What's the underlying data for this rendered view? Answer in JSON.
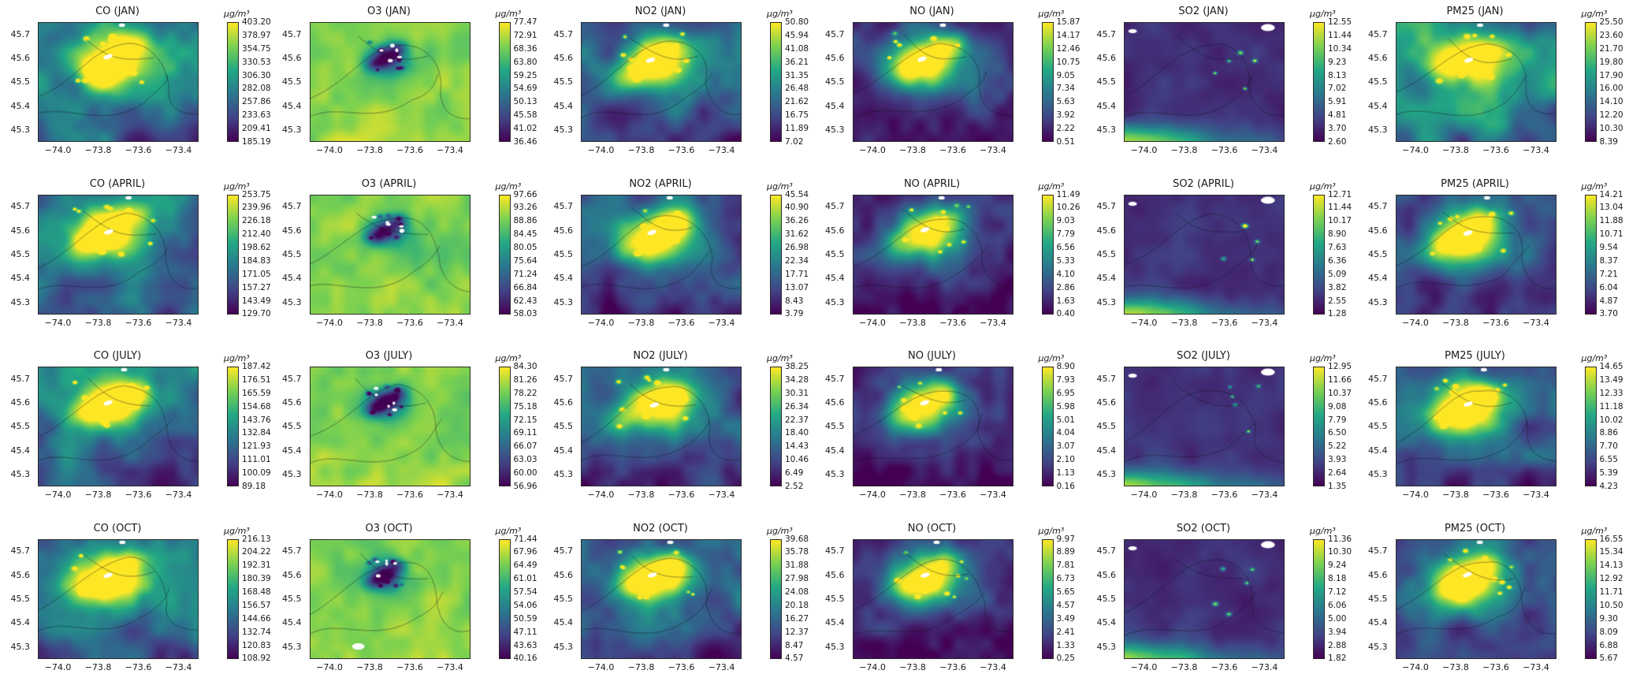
{
  "figure_title": "",
  "chart_data": {
    "type": "heatmap",
    "colormap": "viridis",
    "layout": {
      "rows": 4,
      "cols": 6,
      "grid": true,
      "colorbar_position": "right"
    },
    "row_months": [
      "JAN",
      "APRIL",
      "JULY",
      "OCT"
    ],
    "col_pollutants": [
      "CO",
      "O3",
      "NO2",
      "NO",
      "SO2",
      "PM25"
    ],
    "units": "µg/m³",
    "x_label": "",
    "y_label": "",
    "x_ticks": [
      "−74.0",
      "−73.8",
      "−73.6",
      "−73.4"
    ],
    "y_ticks": [
      "45.7",
      "45.6",
      "45.5",
      "45.4",
      "45.3"
    ],
    "x_range": [
      -74.1,
      -73.33
    ],
    "y_range": [
      45.22,
      45.76
    ],
    "panels": [
      {
        "title": "CO (JAN)",
        "pollutant": "CO",
        "month": "JAN",
        "pattern": "hotspot",
        "base": 0.42,
        "amp": 0.8,
        "colorbar_ticks": [
          "403.20",
          "378.97",
          "354.75",
          "330.53",
          "306.30",
          "282.08",
          "257.86",
          "233.63",
          "209.41",
          "185.19"
        ]
      },
      {
        "title": "O3 (JAN)",
        "pollutant": "O3",
        "month": "JAN",
        "pattern": "inverse",
        "base": 0.8,
        "amp": 1.0,
        "colorbar_ticks": [
          "77.47",
          "72.91",
          "68.36",
          "63.80",
          "59.25",
          "54.69",
          "50.13",
          "45.58",
          "41.02",
          "36.46"
        ]
      },
      {
        "title": "NO2 (JAN)",
        "pollutant": "NO2",
        "month": "JAN",
        "pattern": "hotspot",
        "base": 0.3,
        "amp": 0.78,
        "colorbar_ticks": [
          "50.80",
          "45.94",
          "41.08",
          "36.21",
          "31.35",
          "26.48",
          "21.62",
          "16.75",
          "11.89",
          "7.02"
        ]
      },
      {
        "title": "NO (JAN)",
        "pollutant": "NO",
        "month": "JAN",
        "pattern": "hotspot",
        "base": 0.18,
        "amp": 0.85,
        "colorbar_ticks": [
          "15.87",
          "14.17",
          "12.46",
          "10.75",
          "9.05",
          "7.34",
          "5.63",
          "3.92",
          "2.22",
          "0.51"
        ]
      },
      {
        "title": "SO2 (JAN)",
        "pollutant": "SO2",
        "month": "JAN",
        "pattern": "sparse",
        "base": 0.06,
        "amp": 1.0,
        "colorbar_ticks": [
          "12.55",
          "11.44",
          "10.34",
          "9.23",
          "8.13",
          "7.02",
          "5.91",
          "4.81",
          "3.70",
          "2.60"
        ]
      },
      {
        "title": "PM25 (JAN)",
        "pollutant": "PM25",
        "month": "JAN",
        "pattern": "hotspot",
        "base": 0.5,
        "amp": 0.6,
        "colorbar_ticks": [
          "25.50",
          "23.60",
          "21.70",
          "19.80",
          "17.90",
          "16.00",
          "14.10",
          "12.20",
          "10.30",
          "8.39"
        ]
      },
      {
        "title": "CO (APRIL)",
        "pollutant": "CO",
        "month": "APRIL",
        "pattern": "hotspot",
        "base": 0.4,
        "amp": 0.8,
        "colorbar_ticks": [
          "253.75",
          "239.96",
          "226.18",
          "212.40",
          "198.62",
          "184.83",
          "171.05",
          "157.27",
          "143.49",
          "129.70"
        ]
      },
      {
        "title": "O3 (APRIL)",
        "pollutant": "O3",
        "month": "APRIL",
        "pattern": "inverse",
        "base": 0.8,
        "amp": 1.0,
        "colorbar_ticks": [
          "97.66",
          "93.26",
          "88.86",
          "84.45",
          "80.05",
          "75.64",
          "71.24",
          "66.84",
          "62.43",
          "58.03"
        ]
      },
      {
        "title": "NO2 (APRIL)",
        "pollutant": "NO2",
        "month": "APRIL",
        "pattern": "hotspot",
        "base": 0.28,
        "amp": 0.78,
        "colorbar_ticks": [
          "45.54",
          "40.90",
          "36.26",
          "31.62",
          "26.98",
          "22.34",
          "17.71",
          "13.07",
          "8.43",
          "3.79"
        ]
      },
      {
        "title": "NO (APRIL)",
        "pollutant": "NO",
        "month": "APRIL",
        "pattern": "hotspot",
        "base": 0.15,
        "amp": 0.75,
        "colorbar_ticks": [
          "11.49",
          "10.26",
          "9.03",
          "7.79",
          "6.56",
          "5.33",
          "4.10",
          "2.86",
          "1.63",
          "0.40"
        ]
      },
      {
        "title": "SO2 (APRIL)",
        "pollutant": "SO2",
        "month": "APRIL",
        "pattern": "sparse",
        "base": 0.06,
        "amp": 0.9,
        "colorbar_ticks": [
          "12.71",
          "11.44",
          "10.17",
          "8.90",
          "7.63",
          "6.36",
          "5.09",
          "3.82",
          "2.55",
          "1.28"
        ]
      },
      {
        "title": "PM25 (APRIL)",
        "pollutant": "PM25",
        "month": "APRIL",
        "pattern": "hotspot",
        "base": 0.26,
        "amp": 0.8,
        "colorbar_ticks": [
          "14.21",
          "13.04",
          "11.88",
          "10.71",
          "9.54",
          "8.37",
          "7.21",
          "6.04",
          "4.87",
          "3.70"
        ]
      },
      {
        "title": "CO (JULY)",
        "pollutant": "CO",
        "month": "JULY",
        "pattern": "hotspot",
        "base": 0.38,
        "amp": 0.78,
        "colorbar_ticks": [
          "187.42",
          "176.51",
          "165.59",
          "154.68",
          "143.76",
          "132.84",
          "121.93",
          "111.01",
          "100.09",
          "89.18"
        ]
      },
      {
        "title": "O3 (JULY)",
        "pollutant": "O3",
        "month": "JULY",
        "pattern": "inverse",
        "base": 0.8,
        "amp": 1.0,
        "colorbar_ticks": [
          "84.30",
          "81.26",
          "78.22",
          "75.18",
          "72.15",
          "69.11",
          "66.07",
          "63.03",
          "60.00",
          "56.96"
        ]
      },
      {
        "title": "NO2 (JULY)",
        "pollutant": "NO2",
        "month": "JULY",
        "pattern": "hotspot",
        "base": 0.27,
        "amp": 0.75,
        "colorbar_ticks": [
          "38.25",
          "34.28",
          "30.31",
          "26.34",
          "22.37",
          "18.40",
          "14.43",
          "10.46",
          "6.49",
          "2.52"
        ]
      },
      {
        "title": "NO (JULY)",
        "pollutant": "NO",
        "month": "JULY",
        "pattern": "hotspot",
        "base": 0.14,
        "amp": 0.72,
        "colorbar_ticks": [
          "8.90",
          "7.93",
          "6.95",
          "5.98",
          "5.01",
          "4.04",
          "3.07",
          "2.10",
          "1.13",
          "0.16"
        ]
      },
      {
        "title": "SO2 (JULY)",
        "pollutant": "SO2",
        "month": "JULY",
        "pattern": "sparse",
        "base": 0.06,
        "amp": 0.85,
        "colorbar_ticks": [
          "12.95",
          "11.66",
          "10.37",
          "9.08",
          "7.79",
          "6.50",
          "5.22",
          "3.93",
          "2.64",
          "1.35"
        ]
      },
      {
        "title": "PM25 (JULY)",
        "pollutant": "PM25",
        "month": "JULY",
        "pattern": "hotspot",
        "base": 0.27,
        "amp": 0.82,
        "colorbar_ticks": [
          "14.65",
          "13.49",
          "12.33",
          "11.18",
          "10.02",
          "8.86",
          "7.70",
          "6.55",
          "5.39",
          "4.23"
        ]
      },
      {
        "title": "CO (OCT)",
        "pollutant": "CO",
        "month": "OCT",
        "pattern": "hotspot",
        "base": 0.38,
        "amp": 0.78,
        "colorbar_ticks": [
          "216.13",
          "204.22",
          "192.31",
          "180.39",
          "168.48",
          "156.57",
          "144.66",
          "132.74",
          "120.83",
          "108.92"
        ]
      },
      {
        "title": "O3 (OCT)",
        "pollutant": "O3",
        "month": "OCT",
        "pattern": "inverse",
        "base": 0.8,
        "amp": 1.0,
        "colorbar_ticks": [
          "71.44",
          "67.96",
          "64.49",
          "61.01",
          "57.54",
          "54.06",
          "50.59",
          "47.11",
          "43.63",
          "40.16"
        ]
      },
      {
        "title": "NO2 (OCT)",
        "pollutant": "NO2",
        "month": "OCT",
        "pattern": "hotspot",
        "base": 0.28,
        "amp": 0.76,
        "colorbar_ticks": [
          "39.68",
          "35.78",
          "31.88",
          "27.98",
          "24.08",
          "20.18",
          "16.27",
          "12.37",
          "8.47",
          "4.57"
        ]
      },
      {
        "title": "NO (OCT)",
        "pollutant": "NO",
        "month": "OCT",
        "pattern": "hotspot",
        "base": 0.15,
        "amp": 0.78,
        "colorbar_ticks": [
          "9.97",
          "8.89",
          "7.81",
          "6.73",
          "5.65",
          "4.57",
          "3.49",
          "2.41",
          "1.33",
          "0.25"
        ]
      },
      {
        "title": "SO2 (OCT)",
        "pollutant": "SO2",
        "month": "OCT",
        "pattern": "sparse",
        "base": 0.06,
        "amp": 0.85,
        "colorbar_ticks": [
          "11.36",
          "10.30",
          "9.24",
          "8.18",
          "7.12",
          "6.06",
          "5.00",
          "3.94",
          "2.88",
          "1.82"
        ]
      },
      {
        "title": "PM25 (OCT)",
        "pollutant": "PM25",
        "month": "OCT",
        "pattern": "hotspot",
        "base": 0.28,
        "amp": 0.82,
        "colorbar_ticks": [
          "16.55",
          "15.34",
          "14.13",
          "12.92",
          "11.71",
          "10.50",
          "9.30",
          "8.09",
          "6.88",
          "5.67"
        ]
      }
    ]
  }
}
